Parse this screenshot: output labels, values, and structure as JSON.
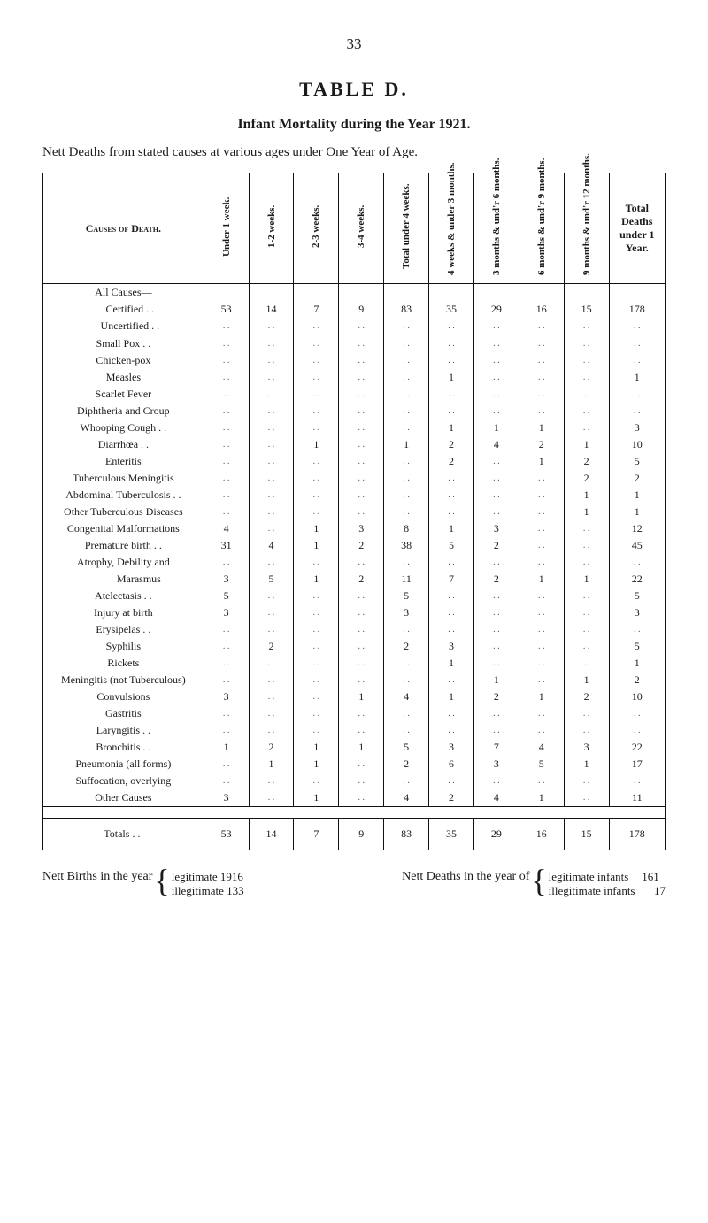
{
  "pageNumber": "33",
  "tableLabel": "TABLE D.",
  "title": "Infant Mortality during the Year 1921.",
  "subtitle": "Nett Deaths from stated causes at various ages under One Year of Age.",
  "columns": {
    "cause": "Causes of Death.",
    "c1": "Under 1 week.",
    "c2": "1-2 weeks.",
    "c3": "2-3 weeks.",
    "c4": "3-4 weeks.",
    "c5": "Total under 4 weeks.",
    "c6": "4 weeks & under 3 months.",
    "c7": "3 months & und'r 6 months.",
    "c8": "6 months & und'r 9 months.",
    "c9": "9 months & und'r 12 months.",
    "c10": "Total Deaths under 1 Year."
  },
  "allCauses": {
    "label": "All Causes—",
    "certified": {
      "name": "Certified",
      "vals": [
        "53",
        "14",
        "7",
        "9",
        "83",
        "35",
        "29",
        "16",
        "15",
        "178"
      ]
    },
    "uncertified": {
      "name": "Uncertified",
      "vals": [
        "",
        "",
        "",
        "",
        "",
        "",
        "",
        "",
        "",
        ""
      ]
    }
  },
  "rows": [
    {
      "name": "Small Pox . .",
      "vals": [
        "",
        "",
        "",
        "",
        "",
        "",
        "",
        "",
        "",
        ""
      ]
    },
    {
      "name": "Chicken-pox",
      "vals": [
        "",
        "",
        "",
        "",
        "",
        "",
        "",
        "",
        "",
        ""
      ]
    },
    {
      "name": "Measles",
      "vals": [
        "",
        "",
        "",
        "",
        "",
        "1",
        "",
        "",
        "",
        "1"
      ]
    },
    {
      "name": "Scarlet Fever",
      "vals": [
        "",
        "",
        "",
        "",
        "",
        "",
        "",
        "",
        "",
        ""
      ]
    },
    {
      "name": "Diphtheria and Croup",
      "vals": [
        "",
        "",
        "",
        "",
        "",
        "",
        "",
        "",
        "",
        ""
      ]
    },
    {
      "name": "Whooping Cough . .",
      "vals": [
        "",
        "",
        "",
        "",
        "",
        "1",
        "1",
        "1",
        "",
        "3"
      ]
    },
    {
      "name": "Diarrhœa  . .",
      "vals": [
        "",
        "",
        "1",
        "",
        "1",
        "2",
        "4",
        "2",
        "1",
        "10"
      ]
    },
    {
      "name": "Enteritis",
      "vals": [
        "",
        "",
        "",
        "",
        "",
        "2",
        "",
        "1",
        "2",
        "5"
      ]
    },
    {
      "name": "Tuberculous Meningitis",
      "vals": [
        "",
        "",
        "",
        "",
        "",
        "",
        "",
        "",
        "2",
        "2"
      ]
    },
    {
      "name": "Abdominal Tuberculosis . .",
      "vals": [
        "",
        "",
        "",
        "",
        "",
        "",
        "",
        "",
        "1",
        "1"
      ]
    },
    {
      "name": "Other Tuberculous Diseases",
      "vals": [
        "",
        "",
        "",
        "",
        "",
        "",
        "",
        "",
        "1",
        "1"
      ]
    },
    {
      "name": "Congenital Malformations",
      "vals": [
        "4",
        "",
        "1",
        "3",
        "8",
        "1",
        "3",
        "",
        "",
        "12"
      ]
    },
    {
      "name": "Premature birth  . .",
      "vals": [
        "31",
        "4",
        "1",
        "2",
        "38",
        "5",
        "2",
        "",
        "",
        "45"
      ]
    },
    {
      "name": "Atrophy, Debility and",
      "vals": [
        "",
        "",
        "",
        "",
        "",
        "",
        "",
        "",
        "",
        ""
      ]
    },
    {
      "name": "Marasmus",
      "indent": true,
      "vals": [
        "3",
        "5",
        "1",
        "2",
        "11",
        "7",
        "2",
        "1",
        "1",
        "22"
      ]
    },
    {
      "name": "Atelectasis . .",
      "vals": [
        "5",
        "",
        "",
        "",
        "5",
        "",
        "",
        "",
        "",
        "5"
      ]
    },
    {
      "name": "Injury at birth",
      "vals": [
        "3",
        "",
        "",
        "",
        "3",
        "",
        "",
        "",
        "",
        "3"
      ]
    },
    {
      "name": "Erysipelas . .",
      "vals": [
        "",
        "",
        "",
        "",
        "",
        "",
        "",
        "",
        "",
        ""
      ]
    },
    {
      "name": "Syphilis",
      "vals": [
        "",
        "2",
        "",
        "",
        "2",
        "3",
        "",
        "",
        "",
        "5"
      ]
    },
    {
      "name": "Rickets",
      "vals": [
        "",
        "",
        "",
        "",
        "",
        "1",
        "",
        "",
        "",
        "1"
      ]
    },
    {
      "name": "Meningitis (not Tuberculous)",
      "vals": [
        "",
        "",
        "",
        "",
        "",
        "",
        "1",
        "",
        "1",
        "2"
      ]
    },
    {
      "name": "Convulsions",
      "vals": [
        "3",
        "",
        "",
        "1",
        "4",
        "1",
        "2",
        "1",
        "2",
        "10"
      ]
    },
    {
      "name": "Gastritis",
      "vals": [
        "",
        "",
        "",
        "",
        "",
        "",
        "",
        "",
        "",
        ""
      ]
    },
    {
      "name": "Laryngitis . .",
      "vals": [
        "",
        "",
        "",
        "",
        "",
        "",
        "",
        "",
        "",
        ""
      ]
    },
    {
      "name": "Bronchitis . .",
      "vals": [
        "1",
        "2",
        "1",
        "1",
        "5",
        "3",
        "7",
        "4",
        "3",
        "22"
      ]
    },
    {
      "name": "Pneumonia (all forms)",
      "vals": [
        "",
        "1",
        "1",
        "",
        "2",
        "6",
        "3",
        "5",
        "1",
        "17"
      ]
    },
    {
      "name": "Suffocation, overlying",
      "vals": [
        "",
        "",
        "",
        "",
        "",
        "",
        "",
        "",
        "",
        ""
      ]
    },
    {
      "name": "Other Causes",
      "vals": [
        "3",
        "",
        "1",
        "",
        "4",
        "2",
        "4",
        "1",
        "",
        "11"
      ]
    }
  ],
  "totals": {
    "name": "Totals . .",
    "vals": [
      "53",
      "14",
      "7",
      "9",
      "83",
      "35",
      "29",
      "16",
      "15",
      "178"
    ]
  },
  "footer": {
    "left": {
      "label": "Nett Births in the year",
      "legit": "legitimate 1916",
      "illegit": "illegitimate 133"
    },
    "right": {
      "label": "Nett Deaths in the year of",
      "legit": "legitimate infants",
      "legitN": "161",
      "illegit": "illegitimate infants",
      "illegitN": "17"
    }
  }
}
